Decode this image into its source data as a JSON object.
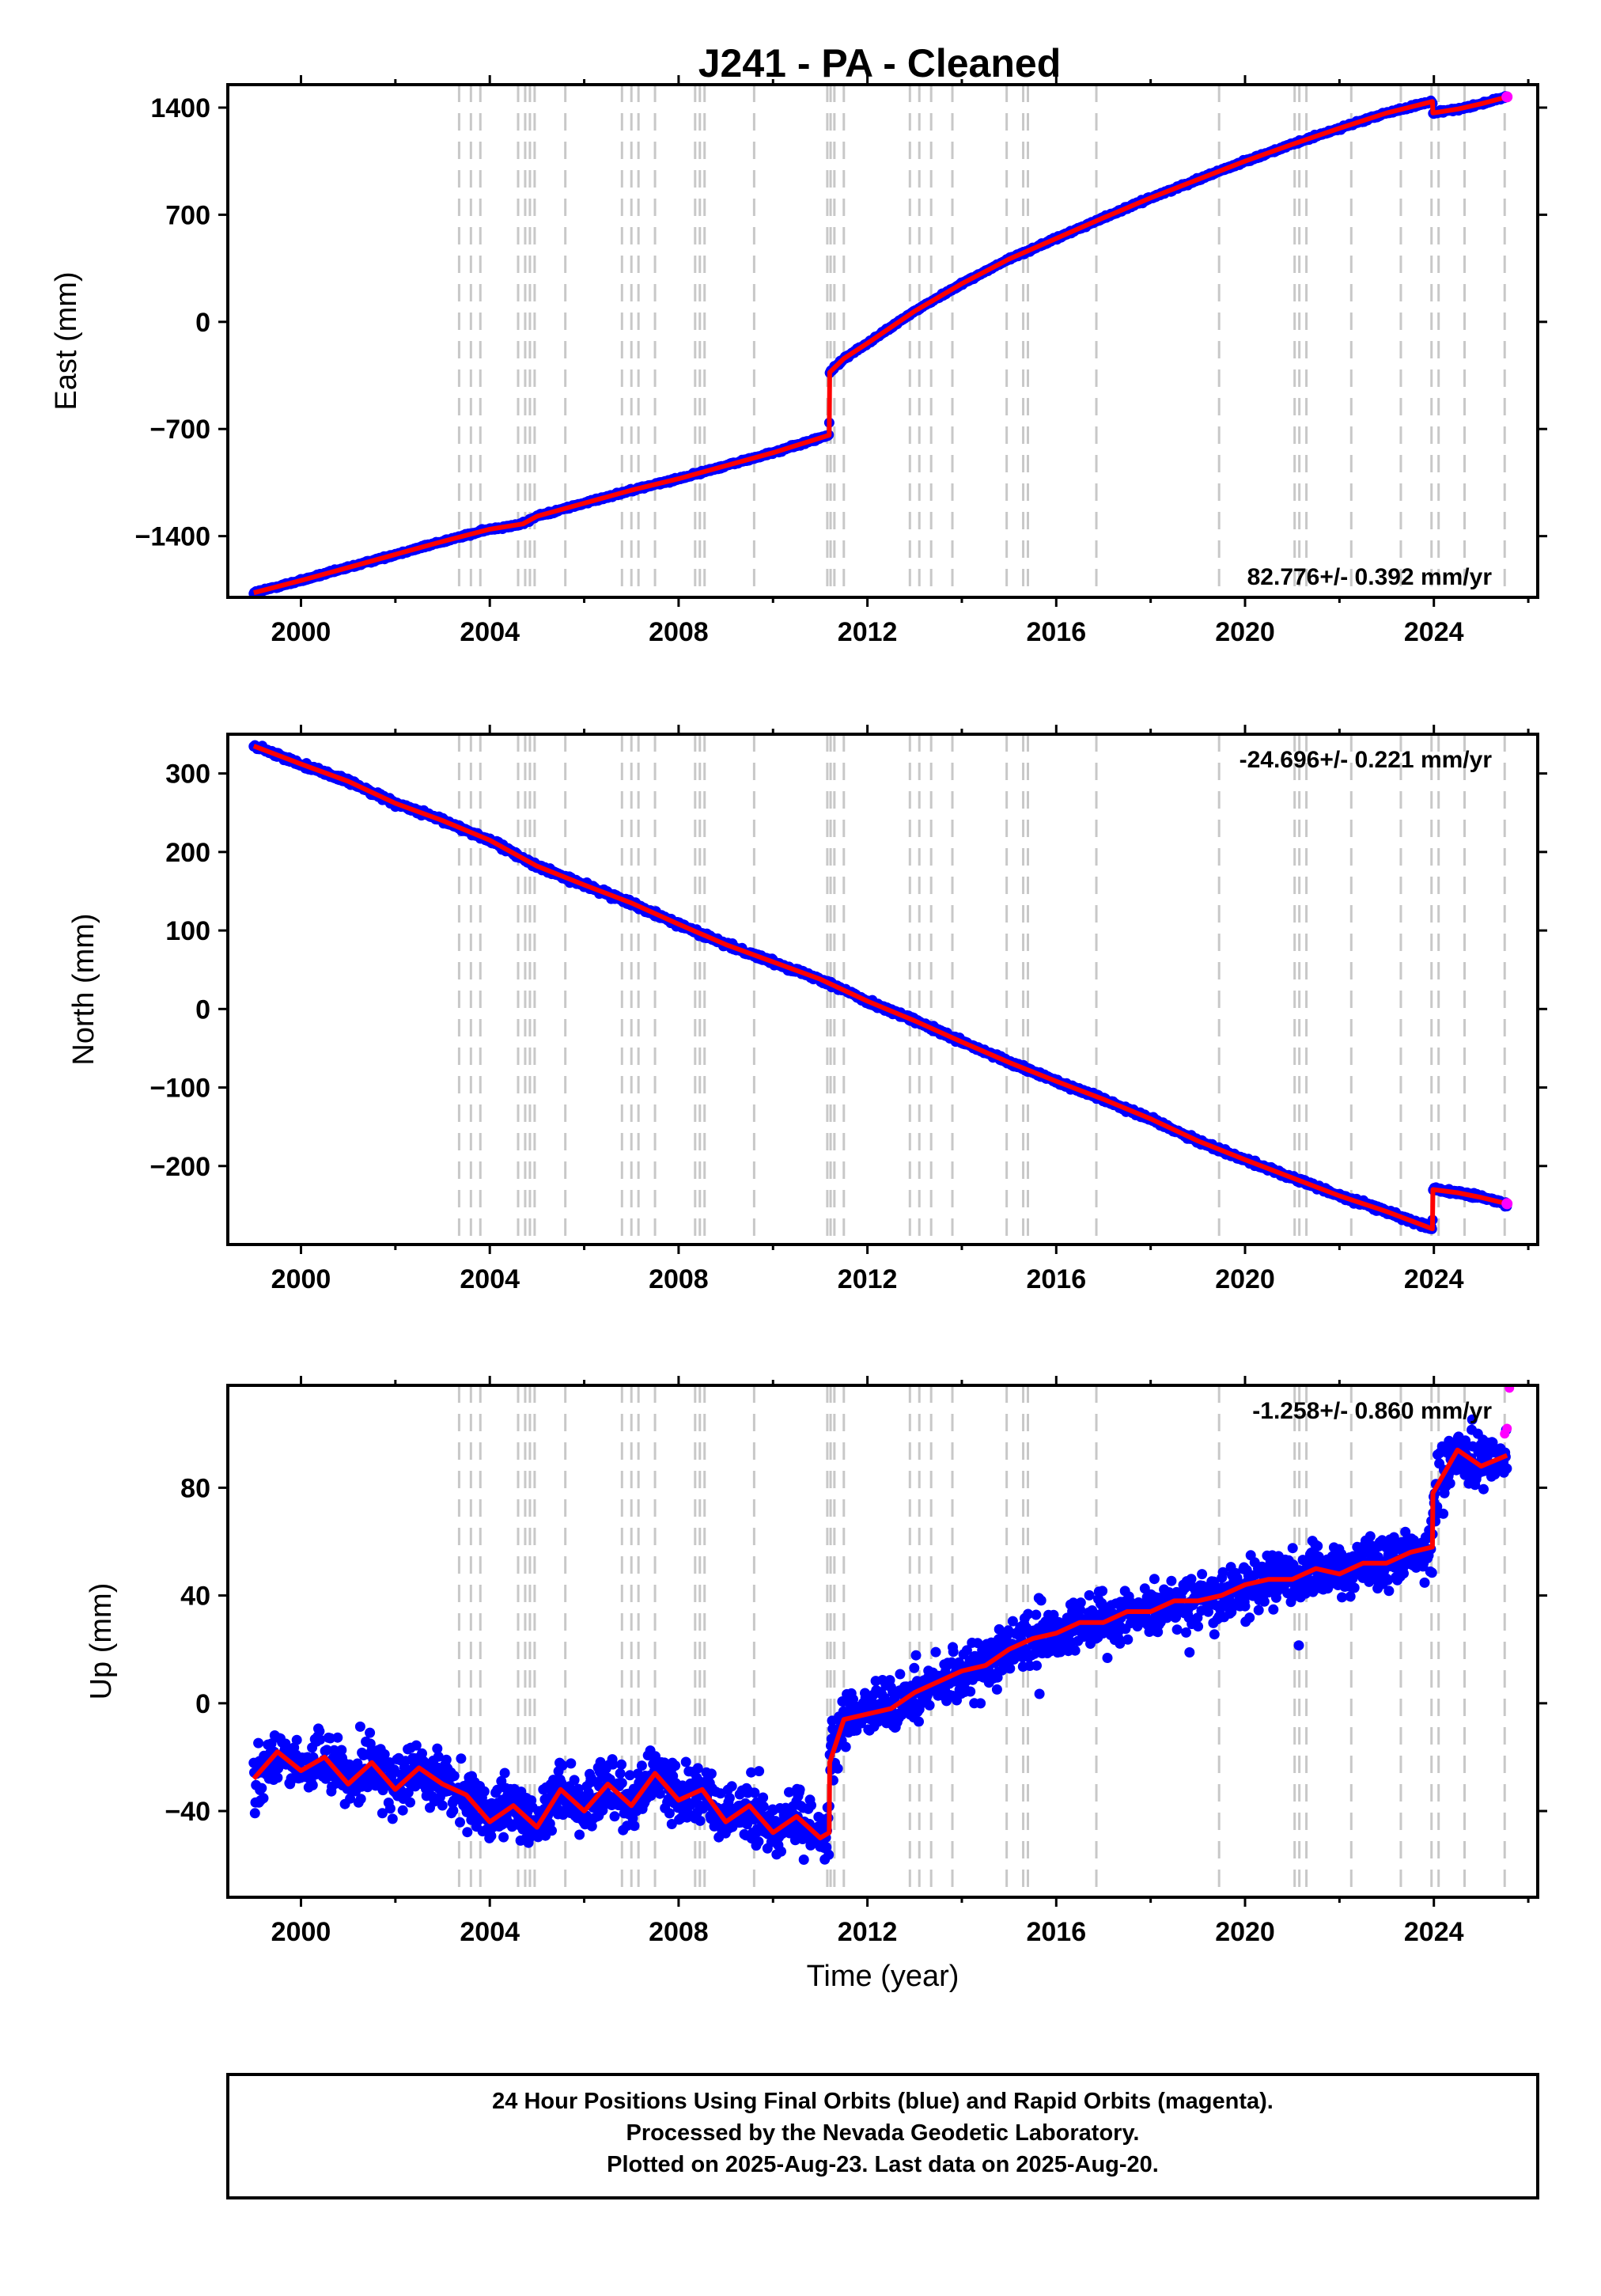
{
  "title": "J241  - PA - Cleaned",
  "xlabel": "Time (year)",
  "x_ticks": [
    "2000",
    "2004",
    "2008",
    "2012",
    "2016",
    "2020",
    "2024"
  ],
  "footer": [
    "24 Hour Positions Using Final Orbits (blue) and Rapid Orbits (magenta).",
    "Processed by the Nevada Geodetic Laboratory.",
    "Plotted on 2025-Aug-23. Last data on 2025-Aug-20."
  ],
  "colors": {
    "final_orbits": "#0000ff",
    "rapid_orbits": "#ff00ff",
    "model": "#ff0000",
    "events": "#c8c8c8"
  },
  "chart_data": [
    {
      "type": "scatter",
      "panel": "east",
      "ylabel": "East (mm)",
      "xlim": [
        1998.45,
        2026.2
      ],
      "ylim": [
        -1800,
        1550
      ],
      "y_ticks": [
        1400,
        700,
        0,
        -700,
        -1400
      ],
      "y_tick_labels": [
        "1400",
        "700",
        "0",
        "−700",
        "−1400"
      ],
      "rate_label": "82.776+/- 0.392 mm/yr",
      "rate_position": "bottom-right",
      "grid": false,
      "event_lines": [
        2003.35,
        2003.6,
        2003.8,
        2004.6,
        2004.75,
        2004.85,
        2004.95,
        2005.6,
        2006.8,
        2007.0,
        2007.15,
        2007.5,
        2008.35,
        2008.45,
        2008.55,
        2009.6,
        2011.15,
        2011.22,
        2011.3,
        2011.5,
        2012.9,
        2013.1,
        2013.35,
        2013.8,
        2014.95,
        2015.3,
        2015.4,
        2016.85,
        2019.45,
        2021.05,
        2021.15,
        2021.3,
        2022.25,
        2023.3,
        2023.95,
        2024.1,
        2024.65,
        2025.5
      ],
      "series": [
        {
          "name": "Final Orbits",
          "x": [
            1999.0,
            2000.0,
            2001.0,
            2002.0,
            2003.0,
            2004.0,
            2004.7,
            2005.0,
            2006.0,
            2007.0,
            2008.0,
            2009.0,
            2010.0,
            2011.19,
            2011.2,
            2011.5,
            2012.0,
            2013.0,
            2014.0,
            2015.0,
            2016.0,
            2017.0,
            2018.0,
            2019.0,
            2020.0,
            2021.0,
            2022.0,
            2023.0,
            2023.97,
            2023.98,
            2024.5,
            2025.0,
            2025.55
          ],
          "y": [
            -1770,
            -1690,
            -1605,
            -1520,
            -1435,
            -1355,
            -1320,
            -1270,
            -1185,
            -1100,
            -1025,
            -940,
            -855,
            -740,
            -330,
            -240,
            -140,
            70,
            250,
            410,
            545,
            680,
            810,
            930,
            1050,
            1160,
            1265,
            1365,
            1440,
            1365,
            1390,
            1425,
            1470
          ]
        }
      ]
    },
    {
      "type": "scatter",
      "panel": "north",
      "ylabel": "North (mm)",
      "xlim": [
        1998.45,
        2026.2
      ],
      "ylim": [
        -300,
        350
      ],
      "y_ticks": [
        300,
        200,
        100,
        0,
        -100,
        -200
      ],
      "y_tick_labels": [
        "300",
        "200",
        "100",
        "0",
        "−100",
        "−200"
      ],
      "rate_label": "-24.696+/- 0.221 mm/yr",
      "rate_position": "top-right",
      "grid": false,
      "event_lines": [
        2003.35,
        2003.6,
        2003.8,
        2004.6,
        2004.75,
        2004.85,
        2004.95,
        2005.6,
        2006.8,
        2007.0,
        2007.15,
        2007.5,
        2008.35,
        2008.45,
        2008.55,
        2009.6,
        2011.15,
        2011.22,
        2011.3,
        2011.5,
        2012.9,
        2013.1,
        2013.35,
        2013.8,
        2014.95,
        2015.3,
        2015.4,
        2016.85,
        2019.45,
        2021.05,
        2021.15,
        2021.3,
        2022.25,
        2023.3,
        2023.95,
        2024.1,
        2024.65,
        2025.5
      ],
      "series": [
        {
          "name": "Final Orbits",
          "x": [
            1999.0,
            2000.0,
            2001.0,
            2002.0,
            2003.0,
            2004.0,
            2005.0,
            2006.0,
            2007.0,
            2008.0,
            2009.0,
            2010.0,
            2011.0,
            2012.0,
            2013.0,
            2014.0,
            2015.0,
            2016.0,
            2017.0,
            2018.0,
            2019.0,
            2020.0,
            2021.0,
            2022.0,
            2023.0,
            2023.97,
            2023.98,
            2024.5,
            2025.0,
            2025.55
          ],
          "y": [
            335,
            312,
            290,
            262,
            240,
            215,
            182,
            158,
            135,
            108,
            82,
            60,
            38,
            10,
            -15,
            -42,
            -68,
            -92,
            -115,
            -140,
            -168,
            -192,
            -215,
            -238,
            -258,
            -280,
            -230,
            -234,
            -240,
            -248
          ]
        }
      ]
    },
    {
      "type": "scatter",
      "panel": "up",
      "ylabel": "Up (mm)",
      "xlim": [
        1998.45,
        2026.2
      ],
      "ylim": [
        -72,
        118
      ],
      "y_ticks": [
        80,
        40,
        0,
        -40
      ],
      "y_tick_labels": [
        "80",
        "40",
        "0",
        "−40"
      ],
      "rate_label": "-1.258+/- 0.860 mm/yr",
      "rate_position": "top-right",
      "grid": false,
      "event_lines": [
        2003.35,
        2003.6,
        2003.8,
        2004.6,
        2004.75,
        2004.85,
        2004.95,
        2005.6,
        2006.8,
        2007.0,
        2007.15,
        2007.5,
        2008.35,
        2008.45,
        2008.55,
        2009.6,
        2011.15,
        2011.22,
        2011.3,
        2011.5,
        2012.9,
        2013.1,
        2013.35,
        2013.8,
        2014.95,
        2015.3,
        2015.4,
        2016.85,
        2019.45,
        2021.05,
        2021.15,
        2021.3,
        2022.25,
        2023.3,
        2023.95,
        2024.1,
        2024.65,
        2025.5
      ],
      "series": [
        {
          "name": "Final Orbits",
          "x": [
            1999.0,
            1999.5,
            2000.0,
            2000.5,
            2001.0,
            2001.5,
            2002.0,
            2002.5,
            2003.0,
            2003.5,
            2004.0,
            2004.5,
            2005.0,
            2005.5,
            2006.0,
            2006.5,
            2007.0,
            2007.5,
            2008.0,
            2008.5,
            2009.0,
            2009.5,
            2010.0,
            2010.5,
            2011.0,
            2011.19,
            2011.2,
            2011.5,
            2012.0,
            2012.5,
            2013.0,
            2013.5,
            2014.0,
            2014.5,
            2015.0,
            2015.5,
            2016.0,
            2016.5,
            2017.0,
            2017.5,
            2018.0,
            2018.5,
            2019.0,
            2019.5,
            2020.0,
            2020.5,
            2021.0,
            2021.5,
            2022.0,
            2022.5,
            2023.0,
            2023.5,
            2023.97,
            2023.98,
            2024.5,
            2025.0,
            2025.55
          ],
          "y": [
            -28,
            -18,
            -25,
            -20,
            -30,
            -22,
            -32,
            -24,
            -30,
            -34,
            -44,
            -38,
            -46,
            -32,
            -40,
            -30,
            -38,
            -26,
            -36,
            -32,
            -44,
            -38,
            -48,
            -42,
            -50,
            -48,
            -22,
            -6,
            -4,
            -2,
            4,
            8,
            12,
            14,
            20,
            24,
            26,
            30,
            30,
            34,
            34,
            38,
            38,
            40,
            44,
            46,
            46,
            50,
            48,
            52,
            52,
            56,
            58,
            78,
            94,
            88,
            92
          ]
        },
        {
          "name": "Rapid Orbits",
          "x": [
            2025.5,
            2025.55,
            2025.6
          ],
          "y": [
            100,
            102,
            117
          ]
        }
      ]
    }
  ]
}
